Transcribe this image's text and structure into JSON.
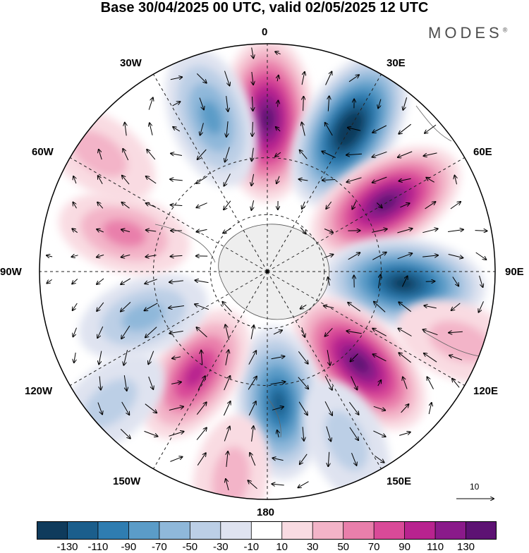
{
  "title": "Base 30/04/2025 00 UTC, valid 02/05/2025 12 UTC",
  "brand": "MODES",
  "brand_mark": "®",
  "lon_labels": {
    "n": "0",
    "ne30": "30E",
    "ne60": "60E",
    "e": "90E",
    "se120": "120E",
    "se150": "150E",
    "s": "180",
    "sw150": "150W",
    "sw120": "120W",
    "w": "90W",
    "nw60": "60W",
    "nw30": "30W"
  },
  "reference_vector": "10",
  "colorbar": {
    "labels": [
      "-130",
      "-110",
      "-90",
      "-70",
      "-50",
      "-30",
      "-10",
      "10",
      "30",
      "50",
      "70",
      "90",
      "110",
      "130"
    ],
    "colors": [
      "#0f3b5c",
      "#1b5e8c",
      "#2f7db1",
      "#5b9cc8",
      "#8fb8da",
      "#bccfe6",
      "#dfe3f0",
      "#ffffff",
      "#f9dbe2",
      "#f3b4c8",
      "#e97fab",
      "#d94a98",
      "#b8238f",
      "#8a1a8a",
      "#5d1273"
    ]
  },
  "colors": {
    "land": "#eeeeee",
    "frame": "#000000"
  },
  "anomaly_cells": [
    {
      "lon": 0,
      "dist": 0.67,
      "value": 130
    },
    {
      "lon": 30,
      "dist": 0.72,
      "value": -140
    },
    {
      "lon": 60,
      "dist": 0.6,
      "value": 125
    },
    {
      "lon": 95,
      "dist": 0.6,
      "value": -125
    },
    {
      "lon": 135,
      "dist": 0.57,
      "value": 125
    },
    {
      "lon": 175,
      "dist": 0.58,
      "value": -95
    },
    {
      "lon": -145,
      "dist": 0.55,
      "value": 75
    },
    {
      "lon": -110,
      "dist": 0.58,
      "value": -40
    },
    {
      "lon": -75,
      "dist": 0.65,
      "value": 40
    },
    {
      "lon": -20,
      "dist": 0.72,
      "value": -70
    },
    {
      "lon": -55,
      "dist": 0.9,
      "value": 18
    },
    {
      "lon": -130,
      "dist": 0.9,
      "value": -20
    },
    {
      "lon": 110,
      "dist": 0.9,
      "value": 30
    },
    {
      "lon": 155,
      "dist": 0.82,
      "value": -25
    },
    {
      "lon": -170,
      "dist": 0.92,
      "value": 20
    }
  ]
}
